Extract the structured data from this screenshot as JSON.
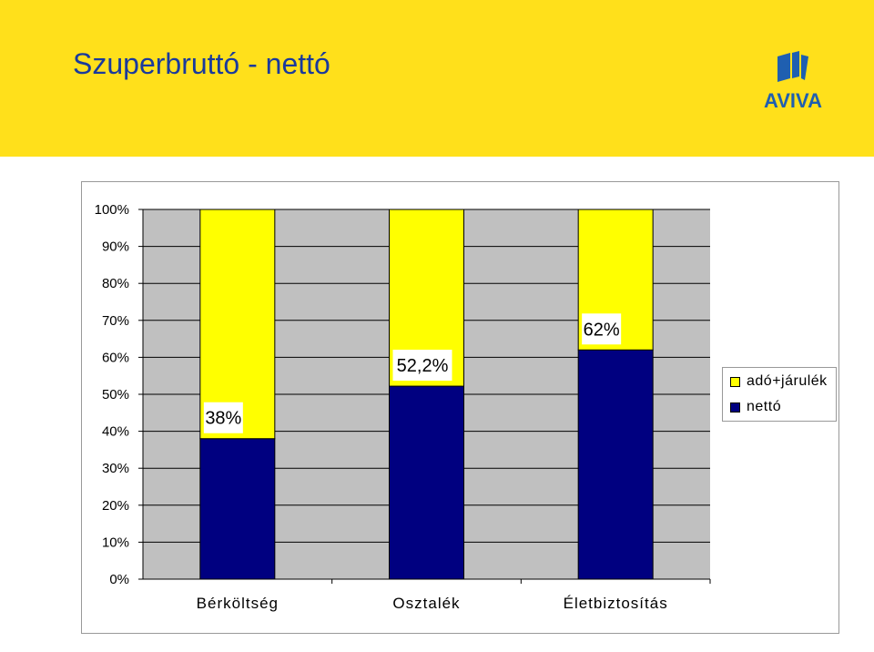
{
  "header": {
    "title": "Szuperbruttó - nettó",
    "logo_text": "AVIVA",
    "background": "#FFE01B",
    "title_color": "#1A3A9C"
  },
  "chart_data": {
    "type": "bar",
    "stacked": true,
    "categories": [
      "Bérköltség",
      "Osztalék",
      "Életbiztosítás"
    ],
    "series": [
      {
        "name": "nettó",
        "values": [
          38,
          52.2,
          62
        ],
        "color": "#000080"
      },
      {
        "name": "adó+járulék",
        "values": [
          62,
          47.8,
          38
        ],
        "color": "#FFFF00"
      }
    ],
    "data_labels": [
      "38%",
      "52,2%",
      "62%"
    ],
    "yticks": [
      "0%",
      "10%",
      "20%",
      "30%",
      "40%",
      "50%",
      "60%",
      "70%",
      "80%",
      "90%",
      "100%"
    ],
    "ylim": [
      0,
      100
    ],
    "plot_background": "#C0C0C0",
    "grid": true,
    "legend_position": "right"
  }
}
